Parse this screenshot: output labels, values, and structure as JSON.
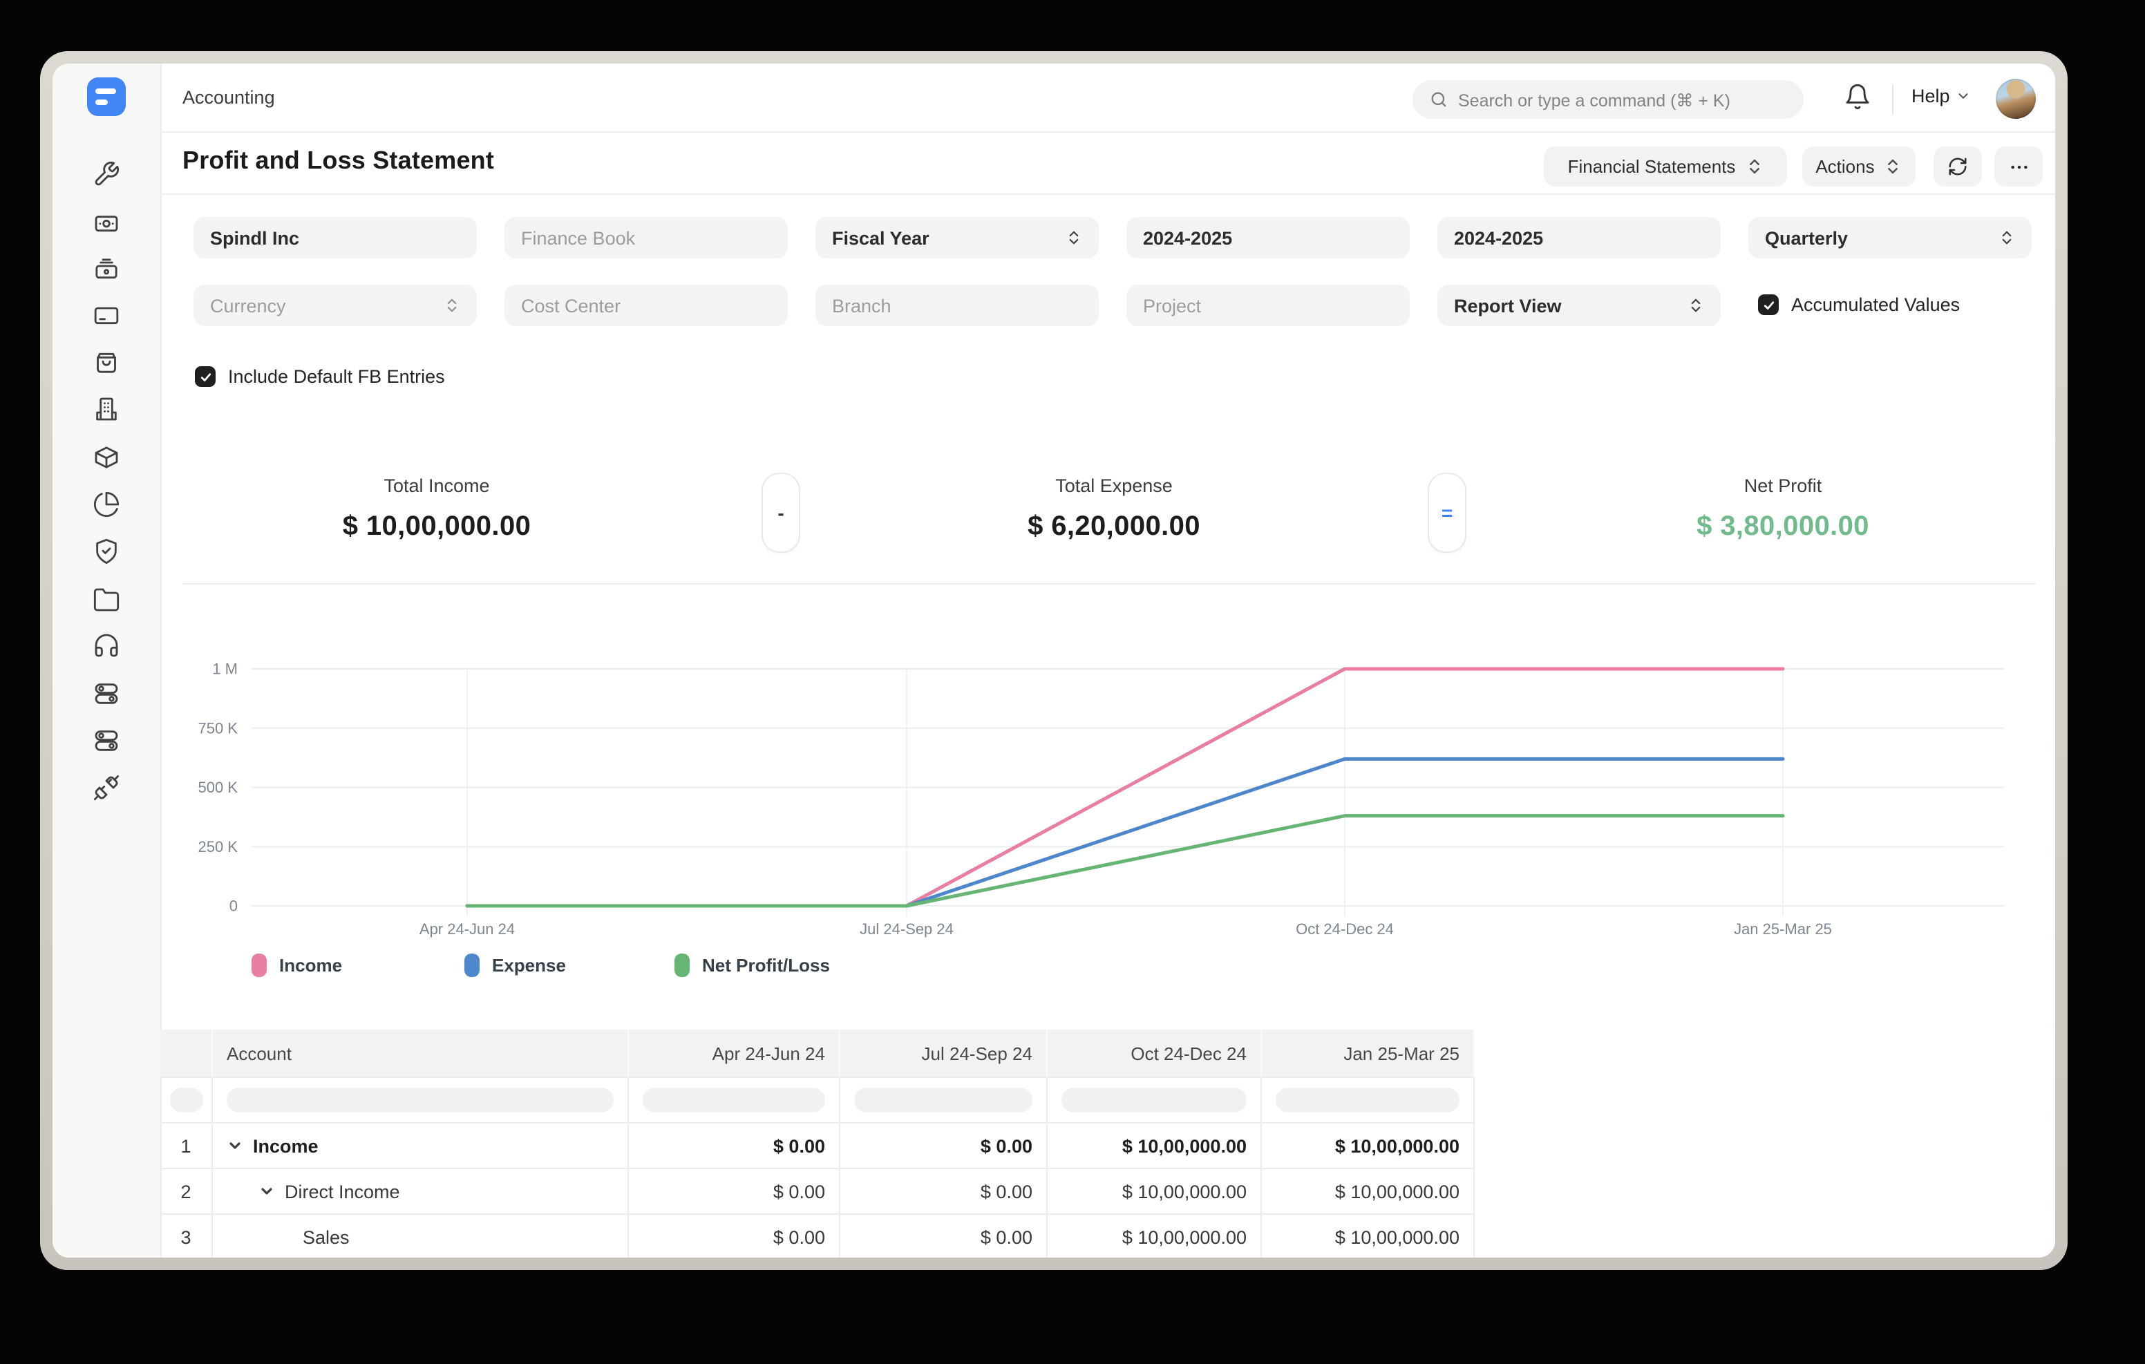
{
  "window": {
    "app_title": "Accounting"
  },
  "topbar": {
    "search_placeholder": "Search or type a command (⌘ + K)",
    "help_label": "Help"
  },
  "page": {
    "title": "Profit and Loss Statement",
    "report_group_button": "Financial Statements",
    "actions_button": "Actions"
  },
  "filters": {
    "row1": [
      {
        "label": "Spindl Inc",
        "kind": "input",
        "filled": true
      },
      {
        "label": "Finance Book",
        "kind": "input",
        "filled": false
      },
      {
        "label": "Fiscal Year",
        "kind": "select",
        "filled": true
      },
      {
        "label": "2024-2025",
        "kind": "input",
        "filled": true
      },
      {
        "label": "2024-2025",
        "kind": "input",
        "filled": true
      },
      {
        "label": "Quarterly",
        "kind": "select",
        "filled": true
      }
    ],
    "row2": [
      {
        "label": "Currency",
        "kind": "select",
        "filled": false
      },
      {
        "label": "Cost Center",
        "kind": "input",
        "filled": false
      },
      {
        "label": "Branch",
        "kind": "input",
        "filled": false
      },
      {
        "label": "Project",
        "kind": "input",
        "filled": false
      },
      {
        "label": "Report View",
        "kind": "select",
        "filled": true
      }
    ],
    "accumulated_values": {
      "label": "Accumulated Values",
      "checked": true
    },
    "include_default_fb": {
      "label": "Include Default FB Entries",
      "checked": true
    }
  },
  "summary": {
    "total_income": {
      "label": "Total Income",
      "value": "$ 10,00,000.00"
    },
    "operator_minus": "-",
    "total_expense": {
      "label": "Total Expense",
      "value": "$ 6,20,000.00"
    },
    "operator_equals": "=",
    "net_profit": {
      "label": "Net Profit",
      "value": "$ 3,80,000.00",
      "color": "#71ba8b"
    }
  },
  "chart_data": {
    "type": "line",
    "categories": [
      "Apr 24-Jun 24",
      "Jul 24-Sep 24",
      "Oct 24-Dec 24",
      "Jan 25-Mar 25"
    ],
    "series": [
      {
        "name": "Income",
        "values": [
          0,
          0,
          1000000,
          1000000
        ],
        "color": "#e87ea1"
      },
      {
        "name": "Expense",
        "values": [
          0,
          0,
          620000,
          620000
        ],
        "color": "#4e86cc"
      },
      {
        "name": "Net Profit/Loss",
        "values": [
          0,
          0,
          380000,
          380000
        ],
        "color": "#66b575"
      }
    ],
    "y_ticks": [
      {
        "v": 0,
        "label": "0"
      },
      {
        "v": 250000,
        "label": "250 K"
      },
      {
        "v": 500000,
        "label": "500 K"
      },
      {
        "v": 750000,
        "label": "750 K"
      },
      {
        "v": 1000000,
        "label": "1 M"
      }
    ],
    "y_max": 1000000,
    "grid": true,
    "legend_position": "bottom",
    "title": "",
    "xlabel": "",
    "ylabel": ""
  },
  "table": {
    "headers": [
      "Account",
      "Apr 24-Jun 24",
      "Jul 24-Sep 24",
      "Oct 24-Dec 24",
      "Jan 25-Mar 25"
    ],
    "rows": [
      {
        "num": "1",
        "account": "Income",
        "values": [
          "$ 0.00",
          "$ 0.00",
          "$ 10,00,000.00",
          "$ 10,00,000.00"
        ]
      },
      {
        "num": "2",
        "account": "Direct Income",
        "values": [
          "$ 0.00",
          "$ 0.00",
          "$ 10,00,000.00",
          "$ 10,00,000.00"
        ]
      },
      {
        "num": "3",
        "account": "Sales",
        "values": [
          "$ 0.00",
          "$ 0.00",
          "$ 10,00,000.00",
          "$ 10,00,000.00"
        ]
      }
    ]
  },
  "colors": {
    "logo_blue": "#4285f4",
    "equals_blue": "#3b82f6",
    "net_profit_green": "#71ba8b"
  }
}
